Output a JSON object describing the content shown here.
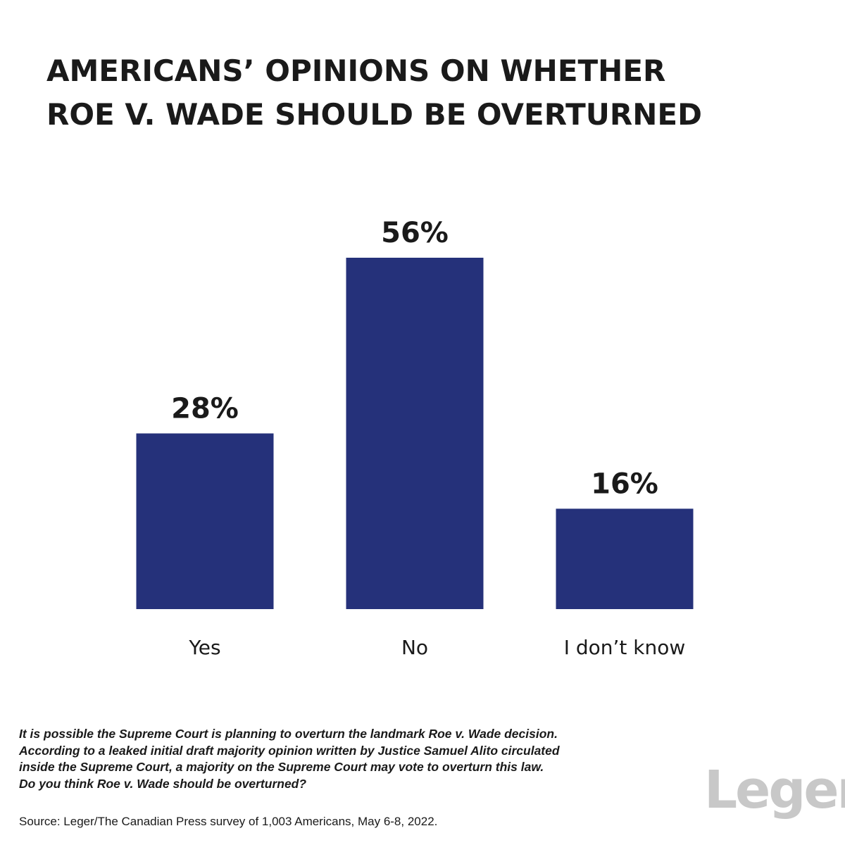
{
  "title_lines": [
    "AMERICANS’ OPINIONS ON WHETHER",
    "ROE V. WADE SHOULD BE OVERTURNED"
  ],
  "chart_data": {
    "type": "bar",
    "categories": [
      "Yes",
      "No",
      "I don’t know"
    ],
    "values": [
      28,
      56,
      16
    ],
    "value_labels": [
      "28%",
      "56%",
      "16%"
    ],
    "unit": "%",
    "bar_color": "#25317a",
    "ylim": [
      0,
      56
    ],
    "grid": false,
    "legend": "none"
  },
  "question_lines": [
    "It is possible the Supreme Court is planning to overturn the landmark Roe v. Wade decision.",
    "According to a leaked initial draft majority opinion written by Justice Samuel Alito circulated",
    "inside the Supreme Court, a majority on the Supreme Court may vote to overturn this law.",
    "Do you think Roe v. Wade should be overturned?"
  ],
  "source": "Source: Leger/The Canadian Press survey of 1,003 Americans, May 6-8, 2022.",
  "logo_text": "Leger",
  "colors": {
    "bar": "#25317a",
    "text": "#1a1a1a",
    "logo": "#c8c8c8"
  }
}
